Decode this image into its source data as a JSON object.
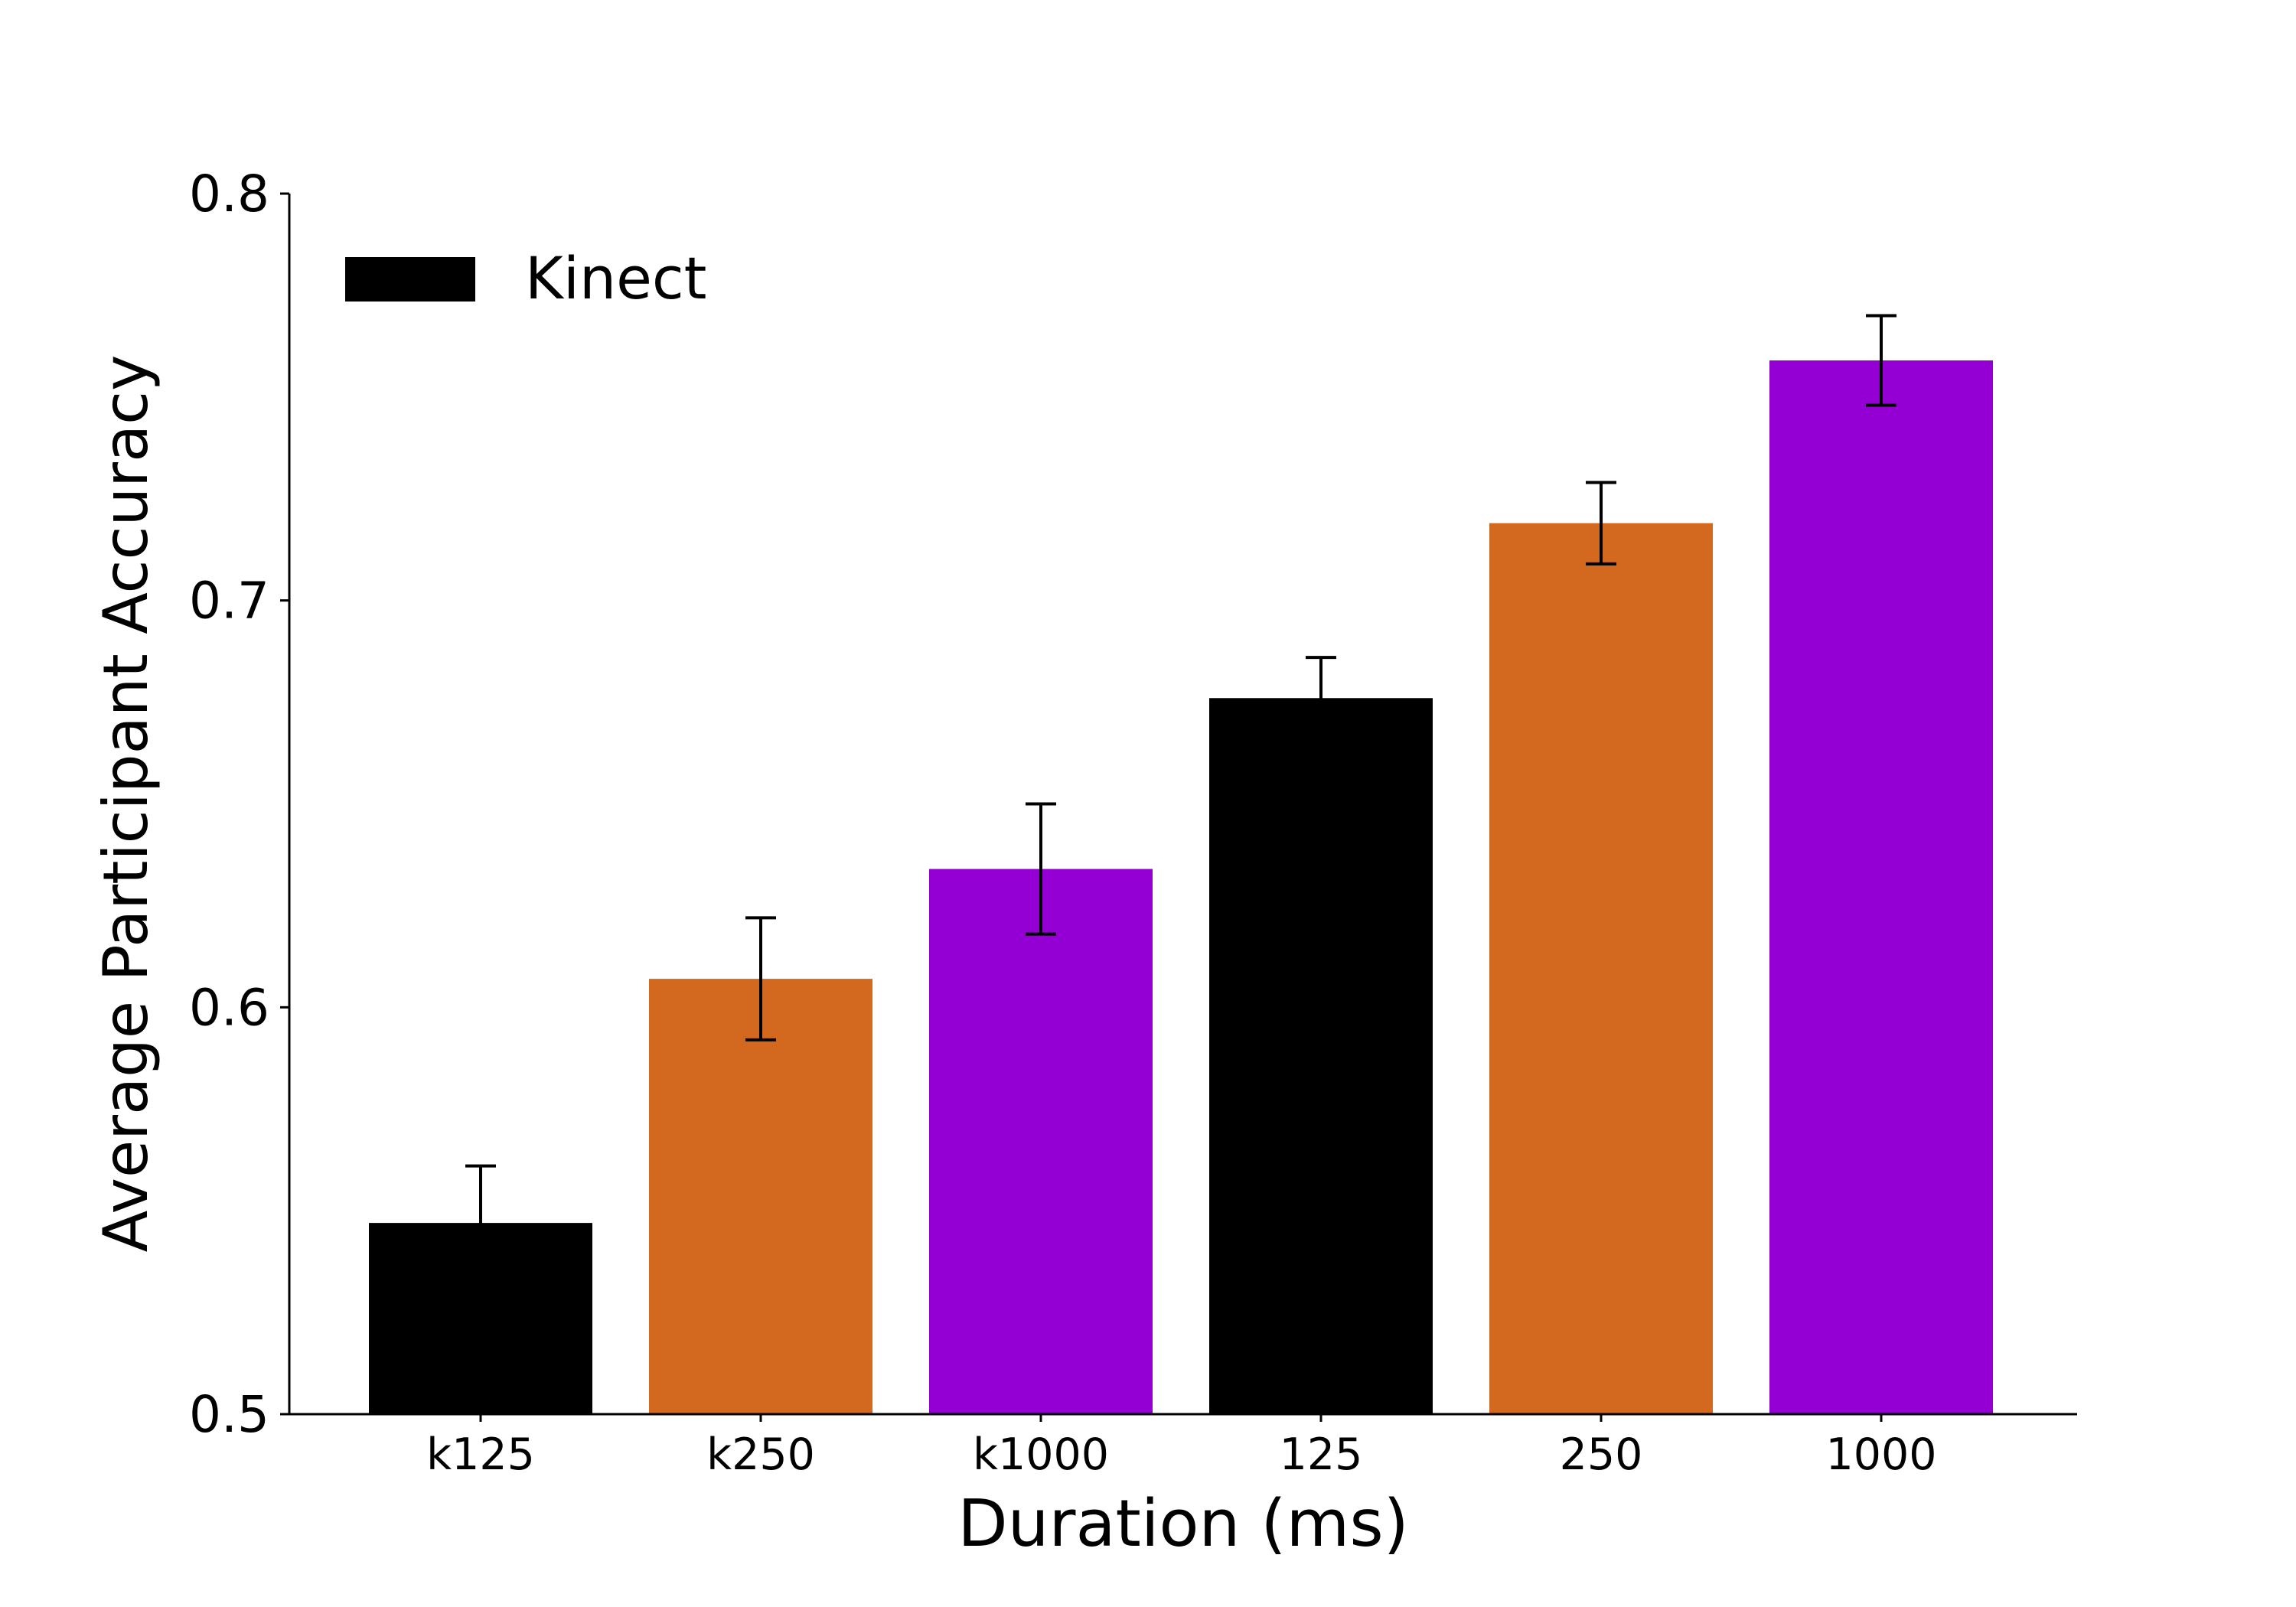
{
  "chart_data": {
    "type": "bar",
    "title": "",
    "xlabel": "Duration (ms)",
    "ylabel": "Average Participant Accuracy",
    "categories": [
      "k125",
      "k250",
      "k1000",
      "125",
      "250",
      "1000"
    ],
    "values": [
      0.547,
      0.607,
      0.634,
      0.676,
      0.719,
      0.759
    ],
    "errors": [
      0.014,
      0.015,
      0.016,
      0.01,
      0.01,
      0.011
    ],
    "bar_colors": [
      "#000000",
      "#d2691e",
      "#9400d3",
      "#000000",
      "#d2691e",
      "#9400d3"
    ],
    "ylim": [
      0.5,
      0.8
    ],
    "yticks": [
      0.5,
      0.6,
      0.7,
      0.8
    ],
    "ytick_labels": [
      "0.5",
      "0.6",
      "0.7",
      "0.8"
    ],
    "grid": false,
    "legend": {
      "placement": "top-left",
      "entries": [
        {
          "label": "Kinect",
          "color": "#000000"
        }
      ]
    }
  }
}
